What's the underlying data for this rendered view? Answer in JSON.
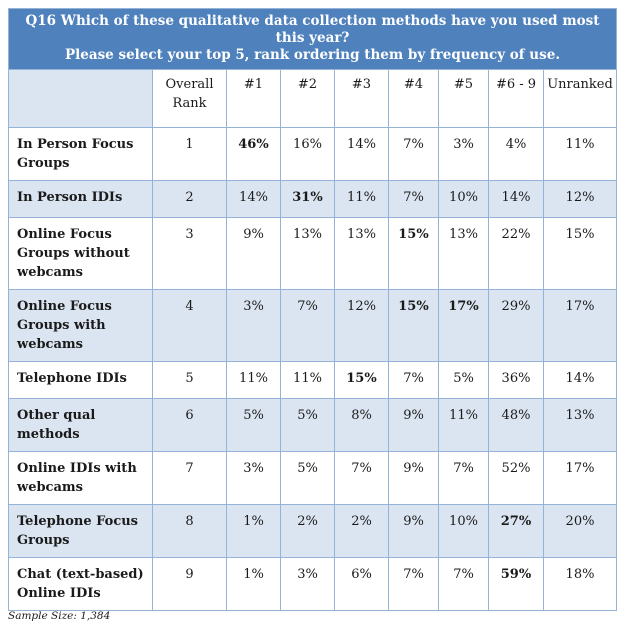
{
  "title_line1": "Q16 Which of these qualitative data collection methods have you used most this year?",
  "title_line2": "Please select your top 5, rank ordering them by frequency of use.",
  "headers": [
    "",
    "Overall Rank",
    "#1",
    "#2",
    "#3",
    "#4",
    "#5",
    "#6 - 9",
    "Unranked"
  ],
  "rows": [
    {
      "label": "In Person Focus Groups",
      "rank": "1",
      "values": [
        "46%",
        "16%",
        "14%",
        "7%",
        "3%",
        "4%",
        "11%"
      ]
    },
    {
      "label": "In Person IDIs",
      "rank": "2",
      "values": [
        "14%",
        "31%",
        "11%",
        "7%",
        "10%",
        "14%",
        "12%"
      ]
    },
    {
      "label": "Online Focus Groups without webcams",
      "rank": "3",
      "values": [
        "9%",
        "13%",
        "13%",
        "15%",
        "13%",
        "22%",
        "15%"
      ]
    },
    {
      "label": "Online Focus Groups with webcams",
      "rank": "4",
      "values": [
        "3%",
        "7%",
        "12%",
        "15%",
        "17%",
        "29%",
        "17%"
      ]
    },
    {
      "label": "Telephone IDIs",
      "rank": "5",
      "values": [
        "11%",
        "11%",
        "15%",
        "7%",
        "5%",
        "36%",
        "14%"
      ]
    },
    {
      "label": "Other qual methods",
      "rank": "6",
      "values": [
        "5%",
        "5%",
        "8%",
        "9%",
        "11%",
        "48%",
        "13%"
      ]
    },
    {
      "label": "Online IDIs with webcams",
      "rank": "7",
      "values": [
        "3%",
        "5%",
        "7%",
        "9%",
        "7%",
        "52%",
        "17%"
      ]
    },
    {
      "label": "Telephone Focus Groups",
      "rank": "8",
      "values": [
        "1%",
        "2%",
        "2%",
        "9%",
        "10%",
        "27%",
        "20%"
      ]
    },
    {
      "label": "Chat (text-based) Online IDIs",
      "rank": "9",
      "values": [
        "1%",
        "3%",
        "6%",
        "7%",
        "7%",
        "59%",
        "18%"
      ]
    }
  ],
  "footnote": "Sample Size: 1,384"
}
